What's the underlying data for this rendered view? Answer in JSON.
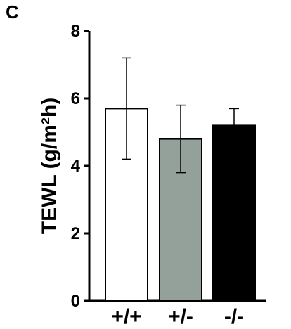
{
  "panel_label": "C",
  "chart_data": {
    "type": "bar",
    "title": "",
    "xlabel": "",
    "ylabel": "TEWL  (g/m²h)",
    "ylim": [
      0,
      8
    ],
    "yticks": [
      0,
      2,
      4,
      6,
      8
    ],
    "categories": [
      "+/+",
      "+/-",
      "-/-"
    ],
    "values": [
      5.7,
      4.8,
      5.2
    ],
    "errors": [
      1.5,
      1.0,
      0.5
    ],
    "bar_colors": [
      "#ffffff",
      "#94a19b",
      "#000000"
    ],
    "bar_stroke": "#000000",
    "grid": false,
    "legend": false
  }
}
